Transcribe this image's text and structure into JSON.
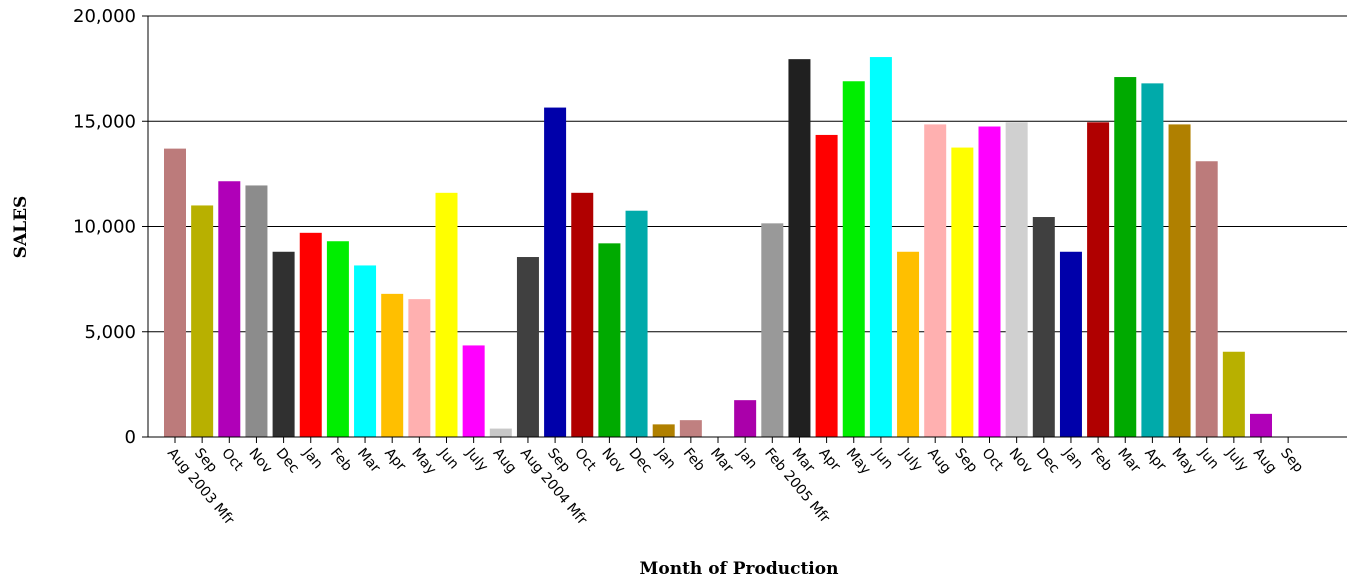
{
  "chart_data": {
    "type": "bar",
    "xlabel": "Month of Production",
    "ylabel": "SALES",
    "ylim": [
      0,
      20000
    ],
    "yticks": [
      0,
      5000,
      10000,
      15000,
      20000
    ],
    "ytick_labels": [
      "0",
      "5,000",
      "10,000",
      "15,000",
      "20,000"
    ],
    "grid": "horizontal",
    "categories": [
      "Aug 2003 Mfr",
      "Sep",
      "Oct",
      "Nov",
      "Dec",
      "Jan",
      "Feb",
      "Mar",
      "Apr",
      "May",
      "Jun",
      "July",
      "Aug",
      "Aug 2004 Mfr",
      "Sep",
      "Oct",
      "Nov",
      "Dec",
      "Jan",
      "Feb",
      "Mar",
      "Jan",
      "Feb 2005 Mfr",
      "Mar",
      "Apr",
      "May",
      "Jun",
      "July",
      "Aug",
      "Sep",
      "Oct",
      "Nov",
      "Dec",
      "Jan",
      "Feb",
      "Mar",
      "Apr",
      "May",
      "Jun",
      "July",
      "Aug",
      "Sep"
    ],
    "values": [
      13700,
      11000,
      12150,
      11950,
      8800,
      9700,
      9300,
      8150,
      6800,
      6550,
      11600,
      4350,
      400,
      8550,
      15650,
      11600,
      9200,
      10750,
      600,
      800,
      0,
      1750,
      10150,
      17950,
      14350,
      16900,
      18050,
      8800,
      14850,
      13750,
      14750,
      14950,
      10450,
      8800,
      14950,
      17100,
      16800,
      14850,
      13100,
      4050,
      1100,
      0
    ],
    "colors": [
      "#bc7b7b",
      "#b8b000",
      "#b000b8",
      "#8c8c8c",
      "#303030",
      "#ff0000",
      "#00ee00",
      "#00ffff",
      "#ffbf00",
      "#ffb0b0",
      "#ffff00",
      "#ff00ff",
      "#c8c8c8",
      "#404040",
      "#0000aa",
      "#b00000",
      "#00aa00",
      "#00aaaa",
      "#b08000",
      "#c08080",
      "#c0c000",
      "#aa00aa",
      "#999999",
      "#202020",
      "#ff0000",
      "#00ee00",
      "#00ffff",
      "#ffbf00",
      "#ffb0b0",
      "#ffff00",
      "#ff00ff",
      "#d0d0d0",
      "#404040",
      "#0000aa",
      "#b00000",
      "#00aa00",
      "#00aaaa",
      "#b08000",
      "#bc7b7b",
      "#b8b000",
      "#b000b8",
      "#8c8c8c"
    ]
  }
}
